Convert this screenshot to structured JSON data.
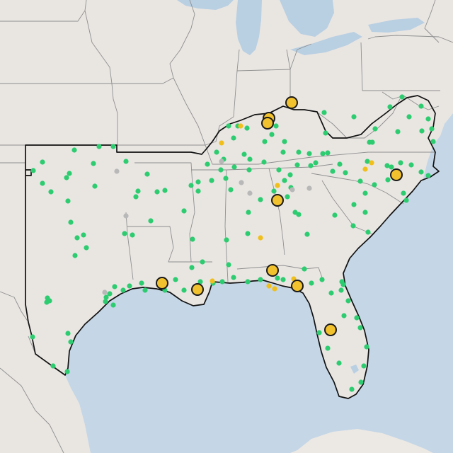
{
  "colors": {
    "water": "#c5d6e6",
    "land": "#e9e6e2",
    "mexico_land": "#ece9e4",
    "lakes": "#b9cfe2",
    "border": "#8f8f8f",
    "region_outline": "#111111",
    "major_marker": "#f2c12e",
    "major_marker_stroke": "#1a1a1a",
    "small_yellow": "#f0bf1c",
    "green_marker": "#2ecc71",
    "gray_marker": "#b8b8b8"
  },
  "legend": {
    "major": "large-yellow-circle",
    "minor": "small-yellow-dot",
    "active": "green-dot",
    "inactive": "gray-dot"
  },
  "markers": {
    "major": 10,
    "small_yellow": 10,
    "green": "many",
    "gray": 8
  }
}
